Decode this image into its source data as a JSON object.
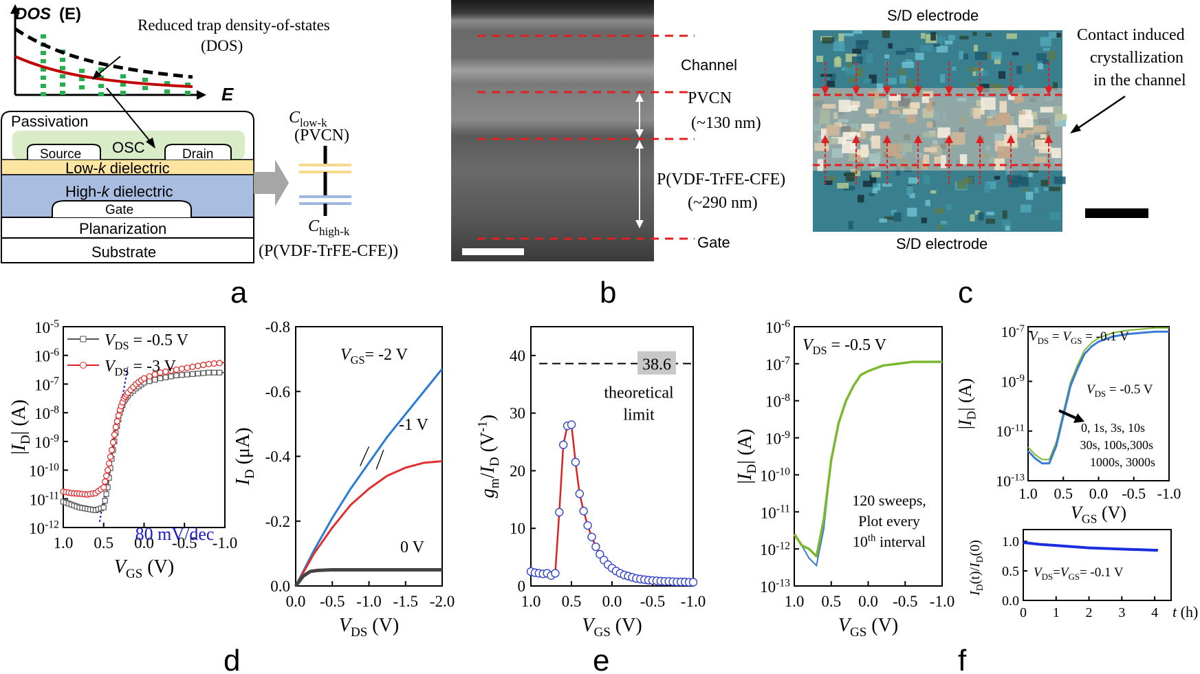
{
  "labels": {
    "a": "a",
    "b": "b",
    "c": "c",
    "d": "d",
    "e": "e",
    "f": "f"
  },
  "panel_a": {
    "dos_axis": "DOS",
    "dos_axis_suffix": "(E)",
    "energy_axis": "E",
    "reduced_dos_line1": "Reduced trap density-of-states",
    "reduced_dos_line2": "(DOS)",
    "passivation": "Passivation",
    "osc": "OSC",
    "source": "Source",
    "drain": "Drain",
    "low_k_pre": "Low-",
    "low_k_italic": "k",
    "low_k_post": " dielectric",
    "high_k_pre": "High-",
    "high_k_italic": "k",
    "high_k_post": " dielectric",
    "gate": "Gate",
    "planarization": "Planarization",
    "substrate": "Substrate",
    "c_low_main": "C",
    "c_low_sub": "low-k",
    "c_low_name": "(PVCN)",
    "c_high_main": "C",
    "c_high_sub": "high-k",
    "c_high_name": "(P(VDF-TrFE-CFE))",
    "colors": {
      "low_k": "#fbe5a0",
      "high_k": "#a9bde0",
      "osc": "#d9ecc8",
      "dos_red": "#c00000",
      "dos_green": "#22b14c"
    }
  },
  "panel_b": {
    "channel": "Channel",
    "pvcn": "PVCN",
    "pvcn_thickness": "(~130 nm)",
    "pvdf": "P(VDF-TrFE-CFE)",
    "pvdf_thickness": "(~290 nm)",
    "gate": "Gate"
  },
  "panel_c": {
    "top_electrode": "S/D electrode",
    "bottom_electrode": "S/D electrode",
    "annotation_line1": "Contact induced",
    "annotation_line2": "crystallization",
    "annotation_line3": "in the channel"
  },
  "chart_data": [
    {
      "id": "d-left",
      "type": "line",
      "yscale": "log",
      "xlim": [
        1.0,
        -1.0
      ],
      "ylim_exp": [
        -12,
        -5
      ],
      "x_ticks": [
        "1.0",
        "0.5",
        "0.0",
        "-0.5",
        "-1.0"
      ],
      "y_ticks": [
        "10^-12",
        "10^-11",
        "10^-10",
        "10^-9",
        "10^-8",
        "10^-7",
        "10^-6",
        "10^-5"
      ],
      "xlabel": "V_GS (V)",
      "ylabel": "|I_D| (A)",
      "annotation": "80 mV/dec",
      "series": [
        {
          "name": "V_DS = -0.5 V",
          "legend_pre": "V",
          "legend_sub": "DS",
          "legend_post": " = -0.5 V",
          "color": "#555555",
          "marker": "square",
          "x": [
            1.0,
            0.9,
            0.8,
            0.7,
            0.6,
            0.5,
            0.45,
            0.4,
            0.35,
            0.3,
            0.25,
            0.2,
            0.1,
            0.0,
            -0.2,
            -0.4,
            -0.6,
            -0.8,
            -1.0
          ],
          "y_exp": [
            -11.1,
            -11.2,
            -11.3,
            -11.35,
            -11.4,
            -11.3,
            -10.6,
            -9.6,
            -8.7,
            -8.0,
            -7.6,
            -7.4,
            -7.15,
            -6.95,
            -6.8,
            -6.7,
            -6.65,
            -6.6,
            -6.6
          ]
        },
        {
          "name": "V_DS = -3 V",
          "legend_pre": "V",
          "legend_sub": "DS",
          "legend_post": " = -3 V",
          "color": "#e02020",
          "marker": "circle",
          "x": [
            1.0,
            0.9,
            0.8,
            0.7,
            0.6,
            0.5,
            0.45,
            0.4,
            0.35,
            0.3,
            0.25,
            0.2,
            0.1,
            0.0,
            -0.2,
            -0.4,
            -0.6,
            -0.8,
            -1.0
          ],
          "y_exp": [
            -10.75,
            -10.8,
            -10.82,
            -10.85,
            -10.8,
            -10.6,
            -10.0,
            -9.3,
            -8.5,
            -7.9,
            -7.5,
            -7.3,
            -7.0,
            -6.8,
            -6.6,
            -6.5,
            -6.4,
            -6.3,
            -6.25
          ]
        }
      ]
    },
    {
      "id": "d-right",
      "type": "line",
      "xlim": [
        0.0,
        -2.0
      ],
      "ylim": [
        0.0,
        -0.8
      ],
      "x_ticks": [
        "0.0",
        "-0.5",
        "-1.0",
        "-1.5",
        "-2.0"
      ],
      "y_ticks": [
        "0.0",
        "-0.2",
        "-0.4",
        "-0.6",
        "-0.8"
      ],
      "xlabel": "V_DS (V)",
      "ylabel": "I_D (μA)",
      "series": [
        {
          "name": "V_GS= -2 V",
          "color": "#2a7ad8",
          "x": [
            0.0,
            -0.25,
            -0.5,
            -0.75,
            -1.0,
            -1.25,
            -1.5,
            -1.75,
            -2.0
          ],
          "y": [
            0.0,
            -0.11,
            -0.21,
            -0.3,
            -0.38,
            -0.46,
            -0.53,
            -0.6,
            -0.67
          ]
        },
        {
          "name": "-1 V",
          "color": "#e03030",
          "x": [
            0.0,
            -0.25,
            -0.5,
            -0.75,
            -1.0,
            -1.25,
            -1.5,
            -1.75,
            -2.0
          ],
          "y": [
            0.0,
            -0.1,
            -0.18,
            -0.25,
            -0.3,
            -0.34,
            -0.365,
            -0.38,
            -0.385
          ]
        },
        {
          "name": "0 V",
          "color": "#444444",
          "x": [
            0.0,
            -0.1,
            -0.2,
            -0.3,
            -0.5,
            -1.0,
            -1.5,
            -2.0
          ],
          "y": [
            0.0,
            -0.03,
            -0.045,
            -0.048,
            -0.05,
            -0.05,
            -0.05,
            -0.05
          ]
        }
      ]
    },
    {
      "id": "e",
      "type": "line",
      "xlim": [
        1.0,
        -1.0
      ],
      "ylim": [
        0,
        45
      ],
      "x_ticks": [
        "1.0",
        "0.5",
        "0.0",
        "-0.5",
        "-1.0"
      ],
      "y_ticks": [
        "0",
        "10",
        "20",
        "30",
        "40"
      ],
      "xlabel": "V_GS (V)",
      "ylabel": "g_m/I_D (V^-1)",
      "theoretical_limit": 38.6,
      "limit_label": "38.6",
      "annotation_line1": "theoretical",
      "annotation_line2": "limit",
      "series": [
        {
          "name": "g_m/I_D",
          "color": "#e02020",
          "marker_color": "#3344cc",
          "x": [
            1.0,
            0.95,
            0.9,
            0.85,
            0.8,
            0.75,
            0.7,
            0.65,
            0.6,
            0.55,
            0.5,
            0.45,
            0.4,
            0.35,
            0.3,
            0.25,
            0.2,
            0.15,
            0.1,
            0.05,
            0.0,
            -0.05,
            -0.1,
            -0.15,
            -0.2,
            -0.25,
            -0.3,
            -0.35,
            -0.4,
            -0.45,
            -0.5,
            -0.55,
            -0.6,
            -0.65,
            -0.7,
            -0.75,
            -0.8,
            -0.85,
            -0.9,
            -0.95,
            -1.0
          ],
          "y": [
            2.5,
            2.3,
            2.2,
            2.1,
            2.2,
            1.8,
            2.2,
            12.8,
            24.5,
            27.8,
            28.0,
            21.5,
            16.0,
            13.0,
            10.5,
            8.5,
            6.8,
            5.5,
            4.5,
            3.7,
            3.1,
            2.6,
            2.2,
            1.9,
            1.7,
            1.5,
            1.3,
            1.2,
            1.1,
            1.0,
            0.95,
            0.9,
            0.85,
            0.8,
            0.8,
            0.75,
            0.7,
            0.7,
            0.7,
            0.65,
            0.65
          ]
        }
      ]
    },
    {
      "id": "f-main",
      "type": "line",
      "yscale": "log",
      "xlim": [
        1.0,
        -1.0
      ],
      "ylim_exp": [
        -13,
        -6
      ],
      "x_ticks": [
        "1.0",
        "0.5",
        "0.0",
        "-0.5",
        "-1.0"
      ],
      "y_ticks": [
        "10^-13",
        "10^-12",
        "10^-11",
        "10^-10",
        "10^-9",
        "10^-8",
        "10^-7",
        "10^-6"
      ],
      "xlabel": "V_GS (V)",
      "ylabel": "|I_D| (A)",
      "legend": "V_DS = -0.5 V",
      "annotation_line1": "120 sweeps,",
      "annotation_line2": "Plot every",
      "annotation_line3_pre": "10",
      "annotation_line3_sup": "th",
      "annotation_line3_post": " interval",
      "series": [
        {
          "name": "sweeps",
          "color": "#7cb82f",
          "x": [
            1.0,
            0.9,
            0.8,
            0.7,
            0.6,
            0.5,
            0.4,
            0.3,
            0.2,
            0.1,
            0.0,
            -0.2,
            -0.4,
            -0.6,
            -0.8,
            -1.0
          ],
          "y_exp": [
            -11.6,
            -11.9,
            -12.0,
            -12.2,
            -11.2,
            -9.6,
            -8.6,
            -8.0,
            -7.6,
            -7.3,
            -7.2,
            -7.05,
            -7.0,
            -6.95,
            -6.95,
            -6.95
          ]
        }
      ]
    },
    {
      "id": "f-inset-top",
      "type": "line",
      "yscale": "log",
      "xlim": [
        1.0,
        -1.0
      ],
      "ylim_exp": [
        -13,
        -6.8
      ],
      "x_ticks": [
        "1.0",
        "0.5",
        "0.0",
        "-0.5",
        "-1.0"
      ],
      "y_ticks": [
        "10^-13",
        "10^-11",
        "10^-9",
        "10^-7"
      ],
      "xlabel": "V_GS (V)",
      "ylabel": "|I_D| (A)",
      "legend": "V_DS = V_GS = -0.1 V",
      "annotation": "V_DS = -0.5 V",
      "times_line1": "0, 1s, 3s, 10s",
      "times_line2": "30s, 100s,300s",
      "times_line3": "1000s, 3000s",
      "series": [
        {
          "name": "transfer",
          "color": "#3a7bd5",
          "x": [
            1.0,
            0.9,
            0.8,
            0.7,
            0.6,
            0.5,
            0.4,
            0.3,
            0.2,
            0.1,
            0.0,
            -0.2,
            -0.4,
            -0.6,
            -0.8,
            -1.0
          ],
          "y_exp": [
            -11.8,
            -12.1,
            -12.3,
            -12.3,
            -11.6,
            -10.4,
            -9.2,
            -8.5,
            -7.9,
            -7.6,
            -7.4,
            -7.2,
            -7.1,
            -7.05,
            -7.0,
            -7.0
          ]
        }
      ]
    },
    {
      "id": "f-inset-bottom",
      "type": "line",
      "xlim": [
        0,
        4.5
      ],
      "ylim": [
        0,
        1.2
      ],
      "x_ticks": [
        "0",
        "1",
        "2",
        "3",
        "4"
      ],
      "y_ticks": [
        "0.0",
        "0.5",
        "1.0"
      ],
      "xlabel": "t (h)",
      "ylabel": "I_D(t)/I_D(0)",
      "annotation": "V_DS=V_GS= -0.1 V",
      "series": [
        {
          "name": "stability",
          "color": "#1a2ee0",
          "x": [
            0,
            0.5,
            1,
            1.5,
            2,
            2.5,
            3,
            3.5,
            4,
            4.1
          ],
          "y": [
            0.98,
            0.95,
            0.93,
            0.91,
            0.89,
            0.88,
            0.87,
            0.86,
            0.85,
            0.85
          ]
        }
      ]
    }
  ]
}
